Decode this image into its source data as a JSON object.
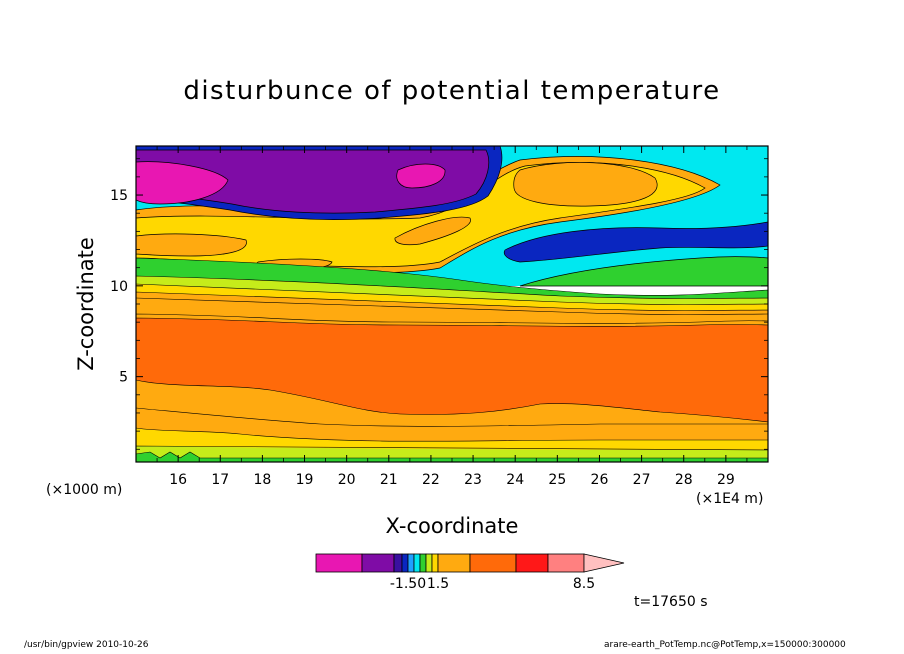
{
  "chart_data": {
    "type": "heatmap",
    "title": "disturbunce of potential temperature",
    "xlabel": "X-coordinate",
    "ylabel": "Z-coordinate",
    "x_unit_left": "(×1000 m)",
    "x_unit_right": "(×1E4 m)",
    "xlim": [
      15.0,
      30.0
    ],
    "ylim": [
      0.3,
      17.7
    ],
    "x_ticks": [
      "16",
      "17",
      "18",
      "19",
      "20",
      "21",
      "22",
      "23",
      "24",
      "25",
      "26",
      "27",
      "28",
      "29"
    ],
    "y_ticks": [
      "5",
      "10",
      "15"
    ],
    "colorbar_labels": [
      {
        "text": "-1.50",
        "level": 4
      },
      {
        "text": "1.5",
        "level": 9
      },
      {
        "text": "8.5",
        "level": 13
      }
    ],
    "colors": [
      "#e817b2",
      "#7f0ca6",
      "#3a10a0",
      "#0a26c0",
      "#20a0ff",
      "#00e8f0",
      "#2fd02f",
      "#c6ec1a",
      "#ffd800",
      "#ffaa10",
      "#ff6a0a",
      "#ff1818",
      "#ff8080",
      "#ffc0c0"
    ],
    "time_label": "t=17650 s",
    "footer_left": "/usr/bin/gpview   2010-10-26",
    "footer_right": "arare-earth_PotTemp.nc@PotTemp,x=150000:300000"
  }
}
